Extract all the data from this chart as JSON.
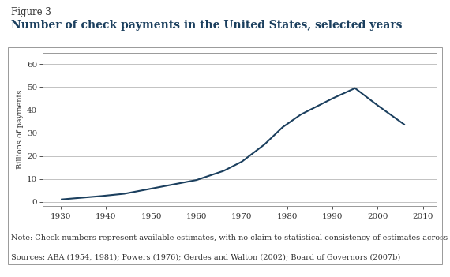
{
  "figure_label": "Figure 3",
  "title": "Number of check payments in the United States, selected years",
  "x_data": [
    1930,
    1939,
    1944,
    1952,
    1960,
    1966,
    1970,
    1975,
    1979,
    1983,
    1990,
    1995,
    2000,
    2006
  ],
  "y_data": [
    1.0,
    2.5,
    3.5,
    6.5,
    9.5,
    13.5,
    17.5,
    25.0,
    32.5,
    38.0,
    45.0,
    49.5,
    42.0,
    33.5
  ],
  "ylabel": "Billions of payments",
  "xlim": [
    1926,
    2013
  ],
  "ylim": [
    -2,
    65
  ],
  "xticks": [
    1930,
    1940,
    1950,
    1960,
    1970,
    1980,
    1990,
    2000,
    2010
  ],
  "yticks": [
    0,
    10,
    20,
    30,
    40,
    50,
    60
  ],
  "line_color": "#1b3f5e",
  "line_width": 1.5,
  "grid_color": "#b8b8b8",
  "background_color": "#ffffff",
  "border_color": "#999999",
  "title_color": "#1b3f5e",
  "label_color": "#333333",
  "note_text": "Note: Check numbers represent available estimates, with no claim to statistical consistency of estimates across years.",
  "source_text": "Sources: ABA (1954, 1981); Powers (1976); Gerdes and Walton (2002); Board of Governors (2007b)",
  "figure_label_fontsize": 8.5,
  "title_fontsize": 10,
  "tick_fontsize": 7.5,
  "ylabel_fontsize": 7,
  "note_fontsize": 7
}
